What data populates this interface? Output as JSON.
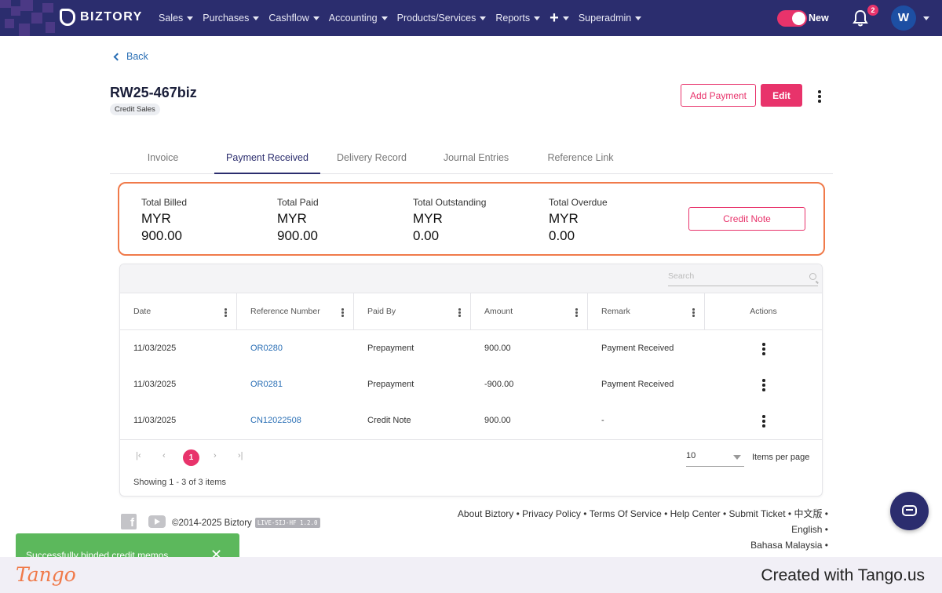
{
  "nav": {
    "brand": "BIZTORY",
    "menu": [
      "Sales",
      "Purchases",
      "Cashflow",
      "Accounting",
      "Products/Services",
      "Reports",
      "+",
      "Superadmin"
    ],
    "toggle_label": "New",
    "notification_count": "2",
    "avatar_initial": "W"
  },
  "header": {
    "back_label": "Back",
    "doc_number": "RW25-467biz",
    "doc_type": "Credit Sales",
    "add_payment_label": "Add Payment",
    "edit_label": "Edit"
  },
  "tabs": [
    "Invoice",
    "Payment Received",
    "Delivery Record",
    "Journal Entries",
    "Reference Link"
  ],
  "active_tab": "Payment Received",
  "summary": {
    "items": [
      {
        "label": "Total Billed",
        "currency": "MYR",
        "value": "900.00"
      },
      {
        "label": "Total Paid",
        "currency": "MYR",
        "value": "900.00"
      },
      {
        "label": "Total Outstanding",
        "currency": "MYR",
        "value": "0.00"
      },
      {
        "label": "Total Overdue",
        "currency": "MYR",
        "value": "0.00"
      }
    ],
    "credit_note_label": "Credit Note"
  },
  "table": {
    "search_placeholder": "Search",
    "columns": [
      "Date",
      "Reference Number",
      "Paid By",
      "Amount",
      "Remark",
      "Actions"
    ],
    "rows": [
      {
        "date": "11/03/2025",
        "ref": "OR0280",
        "paid_by": "Prepayment",
        "amount": "900.00",
        "remark": "Payment Received"
      },
      {
        "date": "11/03/2025",
        "ref": "OR0281",
        "paid_by": "Prepayment",
        "amount": "-900.00",
        "remark": "Payment Received"
      },
      {
        "date": "11/03/2025",
        "ref": "CN12022508",
        "paid_by": "Credit Note",
        "amount": "900.00",
        "remark": "-"
      }
    ],
    "pagination": {
      "current_page": "1",
      "items_per_page": "10",
      "items_per_page_label": "Items per page",
      "showing": "Showing 1 - 3 of 3 items"
    }
  },
  "footer": {
    "copyright": "©2014-2025 Biztory",
    "version": "LIVE-SIJ-HF 1.2.0",
    "links": [
      "About Biztory",
      "Privacy Policy",
      "Terms Of Service",
      "Help Center",
      "Submit Ticket",
      "中文版",
      "English",
      "Bahasa Malaysia"
    ]
  },
  "toast": {
    "message": "Successfully binded credit memos",
    "close": "✕"
  },
  "tango": {
    "logo": "Tango",
    "credit": "Created with Tango.us"
  },
  "colors": {
    "nav_bg": "#2b2d6e",
    "accent": "#e8336b",
    "highlight": "#f07a4a",
    "link": "#2a6fb5",
    "toast": "#5cb85c"
  }
}
